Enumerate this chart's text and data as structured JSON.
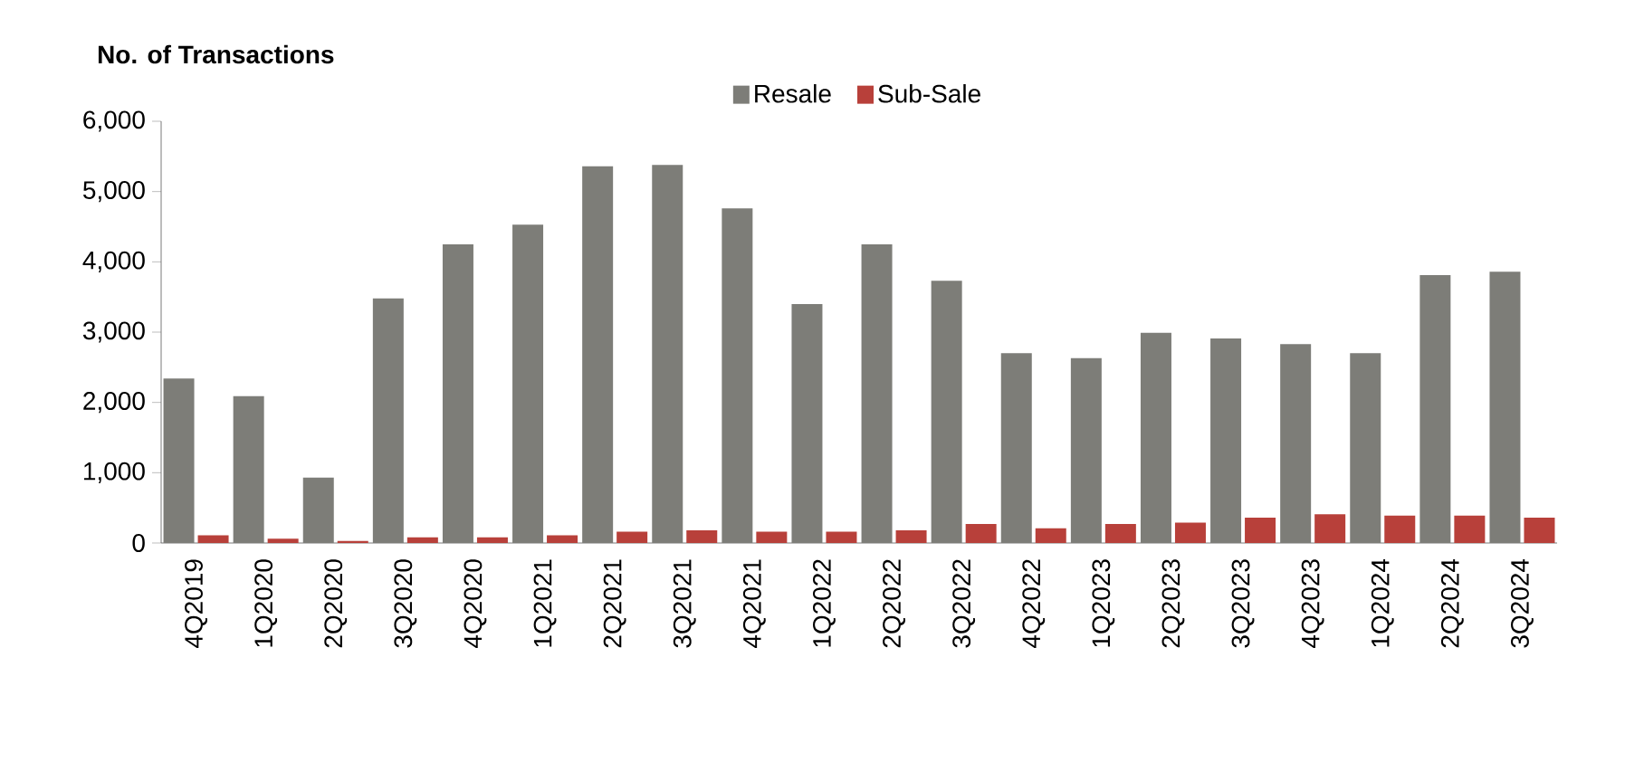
{
  "chart_data": {
    "type": "bar",
    "title": "No. of Transactions",
    "categories": [
      "4Q2019",
      "1Q2020",
      "2Q2020",
      "3Q2020",
      "4Q2020",
      "1Q2021",
      "2Q2021",
      "3Q2021",
      "4Q2021",
      "1Q2022",
      "2Q2022",
      "3Q2022",
      "4Q2022",
      "1Q2023",
      "2Q2023",
      "3Q2023",
      "4Q2023",
      "1Q2024",
      "2Q2024",
      "3Q2024"
    ],
    "series": [
      {
        "name": "Resale",
        "color": "#7d7d78",
        "values": [
          2340,
          2090,
          930,
          3480,
          4250,
          4530,
          5360,
          5380,
          4760,
          3400,
          4250,
          3730,
          2700,
          2630,
          2990,
          2910,
          2830,
          2700,
          3810,
          3860
        ]
      },
      {
        "name": "Sub-Sale",
        "color": "#b8403a",
        "values": [
          110,
          60,
          30,
          80,
          80,
          110,
          160,
          180,
          160,
          160,
          180,
          270,
          210,
          270,
          290,
          360,
          410,
          390,
          390,
          360
        ]
      }
    ],
    "ylim": [
      0,
      6000
    ],
    "yticks": [
      {
        "value": 0,
        "label": "0"
      },
      {
        "value": 1000,
        "label": "1,000"
      },
      {
        "value": 2000,
        "label": "2,000"
      },
      {
        "value": 3000,
        "label": "3,000"
      },
      {
        "value": 4000,
        "label": "4,000"
      },
      {
        "value": 5000,
        "label": "5,000"
      },
      {
        "value": 6000,
        "label": "6,000"
      }
    ],
    "grid": false,
    "legend": "top"
  }
}
